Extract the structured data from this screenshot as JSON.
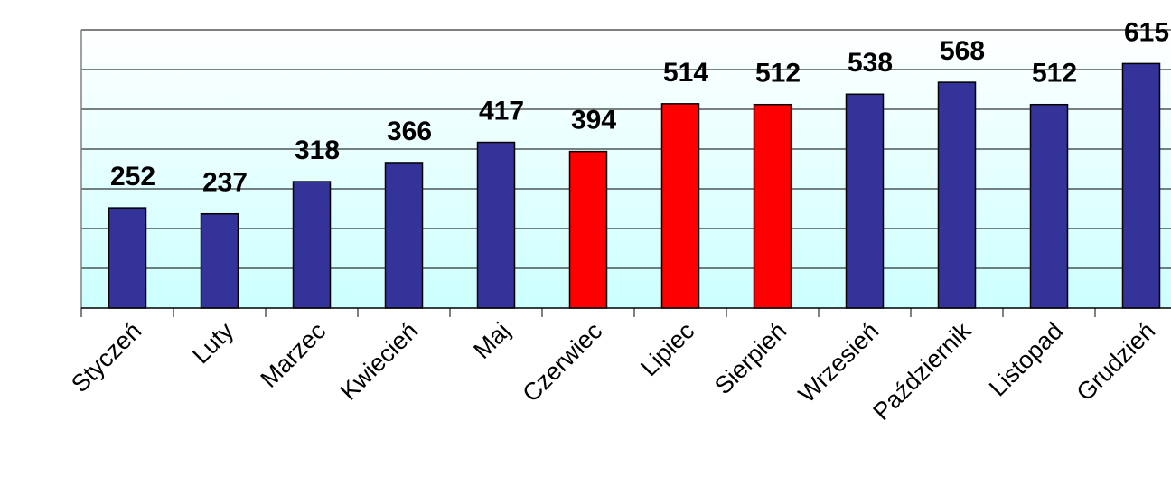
{
  "chart_data": {
    "type": "bar",
    "categories": [
      "Styczeń",
      "Luty",
      "Marzec",
      "Kwiecień",
      "Maj",
      "Czerwiec",
      "Lipiec",
      "Sierpień",
      "Wrzesień",
      "Październik",
      "Listopad",
      "Grudzień"
    ],
    "values": [
      252,
      237,
      318,
      366,
      417,
      394,
      514,
      512,
      538,
      568,
      512,
      615
    ],
    "colors": [
      "#333399",
      "#333399",
      "#333399",
      "#333399",
      "#333399",
      "#ff0000",
      "#ff0000",
      "#ff0000",
      "#333399",
      "#333399",
      "#333399",
      "#333399"
    ],
    "ylim": [
      0,
      700
    ],
    "yticks": [
      0,
      100,
      200,
      300,
      400,
      500,
      600,
      700
    ],
    "grid": true
  }
}
